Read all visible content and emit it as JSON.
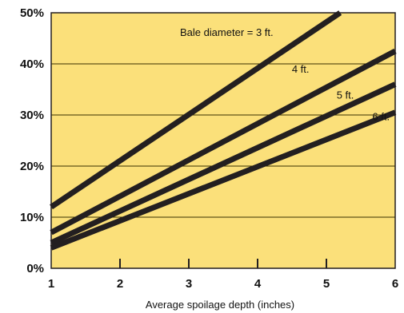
{
  "chart_data": {
    "type": "line",
    "xlabel": "Average spoilage depth (inches)",
    "ylabel": "",
    "x_ticks": [
      "1",
      "2",
      "3",
      "4",
      "5",
      "6"
    ],
    "y_ticks": [
      "0%",
      "10%",
      "20%",
      "30%",
      "40%",
      "50%"
    ],
    "xlim": [
      1,
      6
    ],
    "ylim": [
      0,
      50
    ],
    "grid": "horizontal",
    "series": [
      {
        "name": "Bale diameter = 3 ft.",
        "x": [
          1,
          5.2
        ],
        "y": [
          12,
          50
        ]
      },
      {
        "name": "4 ft.",
        "x": [
          1,
          6
        ],
        "y": [
          7,
          42.5
        ]
      },
      {
        "name": "5 ft.",
        "x": [
          1,
          6
        ],
        "y": [
          5,
          36
        ]
      },
      {
        "name": "6 ft.",
        "x": [
          1,
          6
        ],
        "y": [
          4,
          30.5
        ]
      }
    ],
    "colors": {
      "plot_background": "#fbe07a",
      "line": "#231f20",
      "grid": "#3a3000",
      "frame": "#231f20"
    }
  }
}
